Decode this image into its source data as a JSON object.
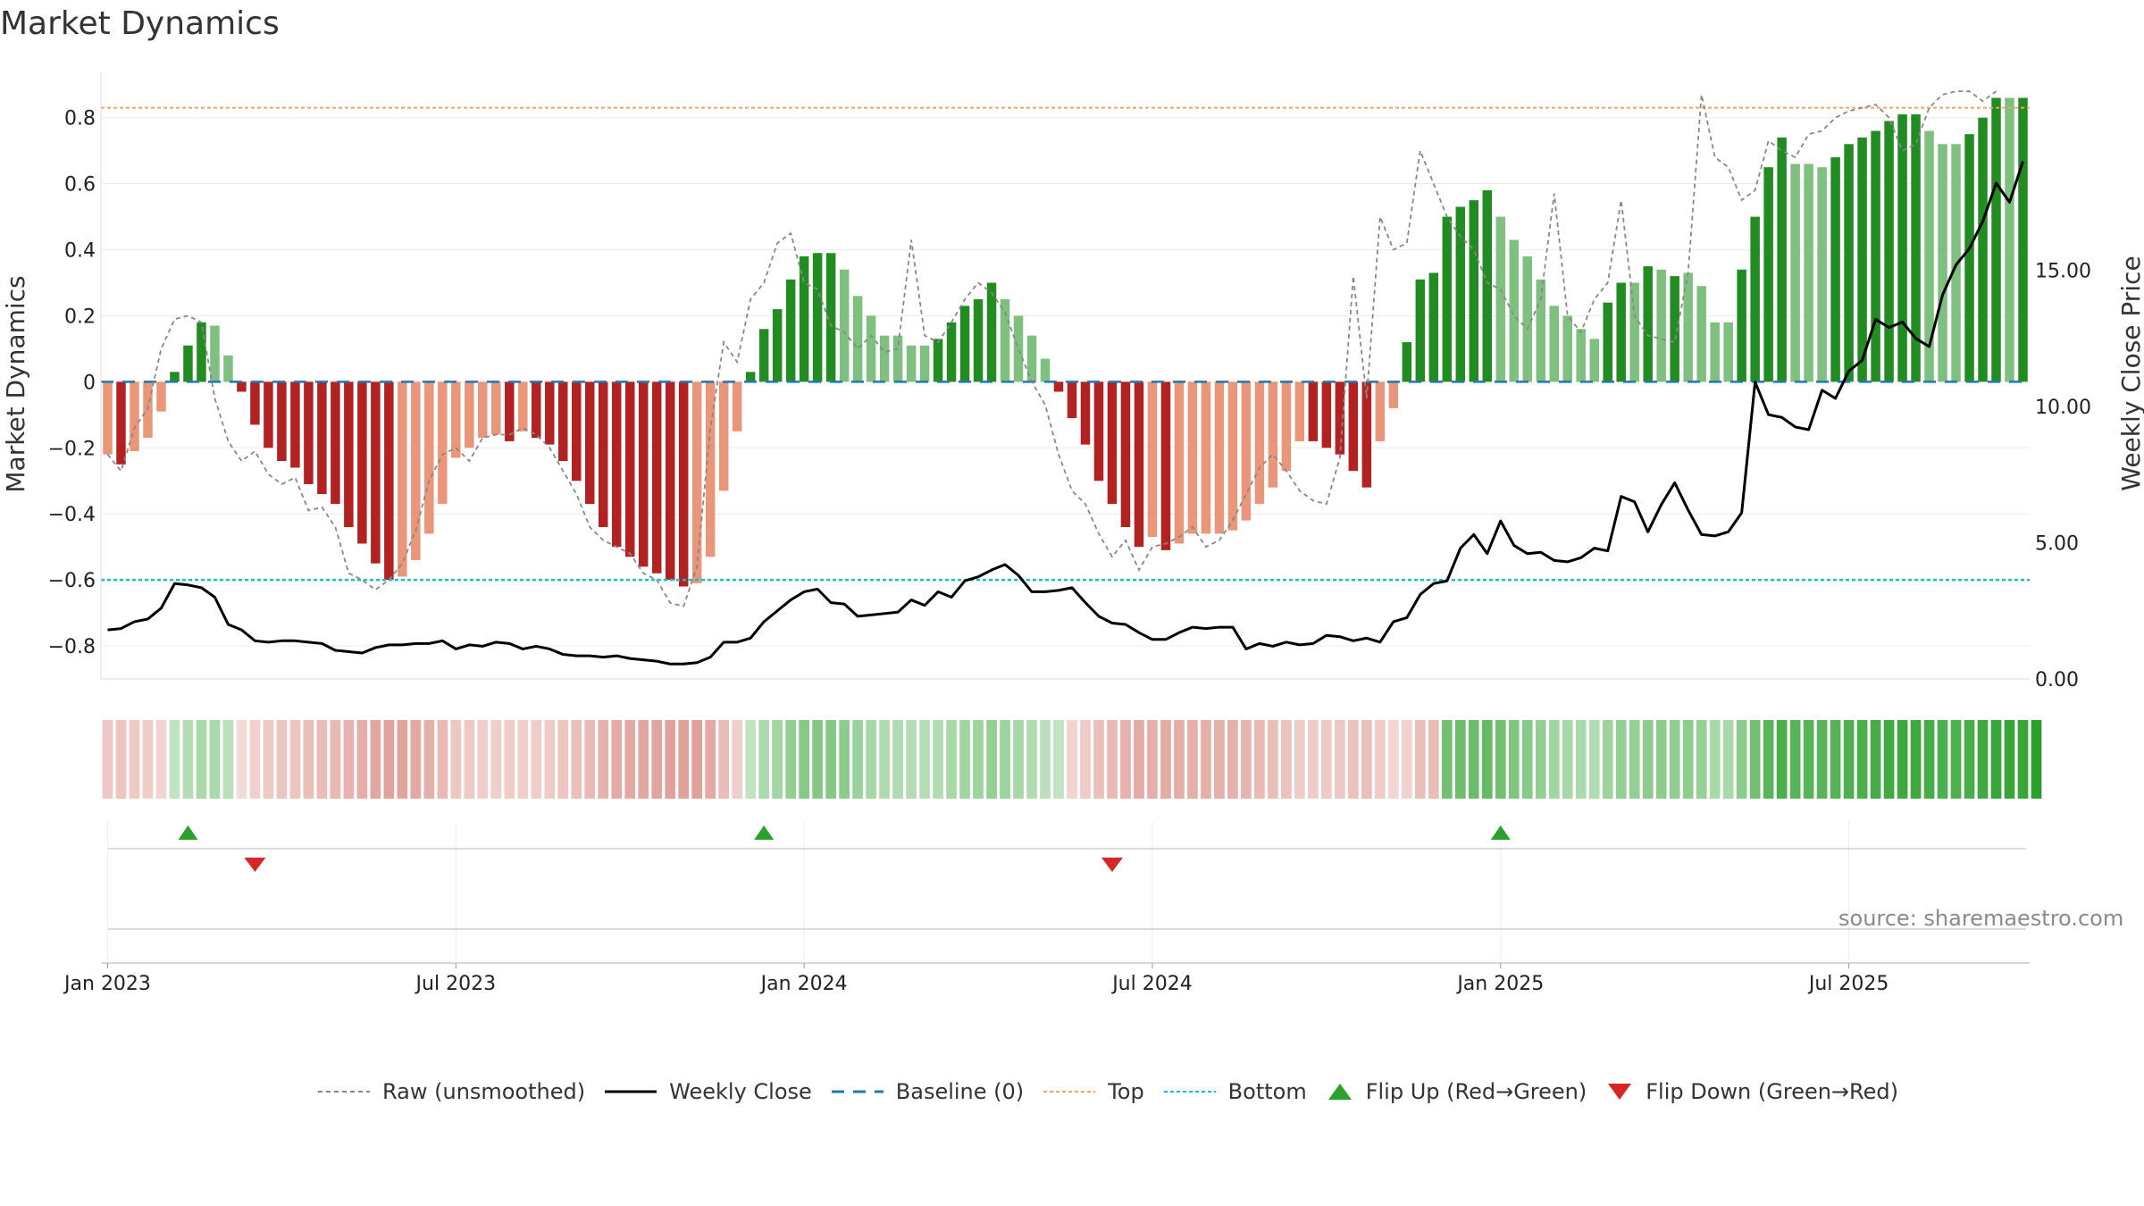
{
  "title": "Market Dynamics",
  "source": "source: sharemaestro.com",
  "chart_data": {
    "type": "bar",
    "title": "Market Dynamics",
    "ylabel": "Market Dynamics",
    "ylabel_right": "Weekly Close Price",
    "ylim": [
      -0.9,
      0.94
    ],
    "ylim_right": [
      0,
      22.3
    ],
    "y_ticks": [
      -0.8,
      -0.6,
      -0.4,
      -0.2,
      0,
      0.2,
      0.4,
      0.6,
      0.8
    ],
    "y_tick_labels": [
      "−0.8",
      "−0.6",
      "−0.4",
      "−0.2",
      "0",
      "0.2",
      "0.4",
      "0.6",
      "0.8"
    ],
    "y_right_ticks": [
      0,
      5,
      10,
      15
    ],
    "y_right_tick_labels": [
      "0.00",
      "5.00",
      "10.00",
      "15.00"
    ],
    "x_ticks": [
      1,
      27,
      53,
      79,
      105,
      131
    ],
    "x_tick_labels": [
      "Jan 2023",
      "Jul 2023",
      "Jan 2024",
      "Jul 2024",
      "Jan 2025",
      "Jul 2025"
    ],
    "top_line": 0.83,
    "bottom_line": -0.6,
    "baseline": 0,
    "colors": {
      "green_strong": "#228b22",
      "green_weak": "#7fbf7f",
      "red_strong": "#b22222",
      "red_weak": "#e9967a",
      "raw": "#888888",
      "close": "#000000",
      "baseline": "#1f77b4",
      "top": "#f4a460",
      "bottom": "#17becf",
      "flip_up": "#2ca02c",
      "flip_down": "#d62728"
    },
    "series": [
      {
        "name": "Market Dynamics (smoothed)",
        "values": [
          -0.22,
          -0.25,
          -0.21,
          -0.17,
          -0.09,
          0.03,
          0.11,
          0.18,
          0.17,
          0.08,
          -0.03,
          -0.13,
          -0.2,
          -0.24,
          -0.26,
          -0.31,
          -0.34,
          -0.37,
          -0.44,
          -0.49,
          -0.55,
          -0.6,
          -0.59,
          -0.54,
          -0.46,
          -0.37,
          -0.23,
          -0.2,
          -0.17,
          -0.16,
          -0.18,
          -0.15,
          -0.17,
          -0.19,
          -0.24,
          -0.3,
          -0.37,
          -0.44,
          -0.5,
          -0.53,
          -0.56,
          -0.58,
          -0.6,
          -0.62,
          -0.61,
          -0.53,
          -0.33,
          -0.15,
          0.03,
          0.16,
          0.22,
          0.31,
          0.38,
          0.39,
          0.39,
          0.34,
          0.26,
          0.2,
          0.14,
          0.14,
          0.11,
          0.11,
          0.13,
          0.18,
          0.23,
          0.25,
          0.3,
          0.25,
          0.2,
          0.14,
          0.07,
          -0.03,
          -0.11,
          -0.19,
          -0.3,
          -0.37,
          -0.44,
          -0.5,
          -0.47,
          -0.51,
          -0.49,
          -0.46,
          -0.46,
          -0.46,
          -0.45,
          -0.42,
          -0.37,
          -0.32,
          -0.27,
          -0.18,
          -0.18,
          -0.2,
          -0.22,
          -0.27,
          -0.32,
          -0.18,
          -0.08,
          0.12,
          0.31,
          0.33,
          0.5,
          0.53,
          0.55,
          0.58,
          0.5,
          0.43,
          0.38,
          0.31,
          0.23,
          0.2,
          0.16,
          0.13,
          0.24,
          0.3,
          0.3,
          0.35,
          0.34,
          0.32,
          0.33,
          0.29,
          0.18,
          0.18,
          0.34,
          0.5,
          0.65,
          0.74,
          0.66,
          0.66,
          0.65,
          0.68,
          0.72,
          0.74,
          0.76,
          0.79,
          0.81,
          0.81,
          0.76,
          0.72,
          0.72,
          0.75,
          0.8,
          0.86,
          0.86,
          0.86
        ]
      },
      {
        "name": "Strength",
        "values": [
          0,
          1,
          0,
          0,
          0,
          1,
          1,
          1,
          0,
          0,
          1,
          1,
          1,
          1,
          1,
          1,
          1,
          1,
          1,
          1,
          1,
          1,
          0,
          0,
          0,
          0,
          0,
          0,
          0,
          0,
          1,
          0,
          1,
          1,
          1,
          1,
          1,
          1,
          1,
          1,
          1,
          1,
          1,
          1,
          0,
          0,
          0,
          0,
          1,
          1,
          1,
          1,
          1,
          1,
          1,
          0,
          0,
          0,
          0,
          0,
          0,
          0,
          1,
          1,
          1,
          1,
          1,
          0,
          0,
          0,
          0,
          1,
          1,
          1,
          1,
          1,
          1,
          1,
          0,
          1,
          0,
          0,
          0,
          0,
          0,
          0,
          0,
          0,
          0,
          0,
          1,
          1,
          1,
          1,
          1,
          0,
          0,
          1,
          1,
          1,
          1,
          1,
          1,
          1,
          0,
          0,
          0,
          0,
          0,
          0,
          0,
          0,
          1,
          1,
          0,
          1,
          0,
          1,
          0,
          0,
          0,
          0,
          1,
          1,
          1,
          1,
          0,
          0,
          0,
          1,
          1,
          1,
          1,
          1,
          1,
          1,
          0,
          0,
          0,
          1,
          1,
          1,
          0,
          1
        ]
      },
      {
        "name": "Raw (unsmoothed)",
        "values": [
          -0.22,
          -0.27,
          -0.14,
          -0.08,
          0.1,
          0.19,
          0.2,
          0.18,
          -0.05,
          -0.18,
          -0.24,
          -0.21,
          -0.28,
          -0.31,
          -0.29,
          -0.39,
          -0.38,
          -0.44,
          -0.58,
          -0.6,
          -0.63,
          -0.6,
          -0.55,
          -0.45,
          -0.3,
          -0.22,
          -0.2,
          -0.24,
          -0.17,
          -0.16,
          -0.16,
          -0.14,
          -0.16,
          -0.2,
          -0.27,
          -0.34,
          -0.44,
          -0.48,
          -0.5,
          -0.52,
          -0.58,
          -0.6,
          -0.67,
          -0.68,
          -0.56,
          -0.14,
          0.12,
          0.06,
          0.25,
          0.3,
          0.42,
          0.45,
          0.3,
          0.28,
          0.17,
          0.15,
          0.1,
          0.14,
          0.09,
          0.1,
          0.43,
          0.14,
          0.12,
          0.18,
          0.25,
          0.3,
          0.27,
          0.21,
          0.1,
          0.0,
          -0.07,
          -0.22,
          -0.33,
          -0.37,
          -0.46,
          -0.53,
          -0.48,
          -0.57,
          -0.5,
          -0.49,
          -0.47,
          -0.44,
          -0.5,
          -0.48,
          -0.42,
          -0.34,
          -0.26,
          -0.22,
          -0.27,
          -0.33,
          -0.36,
          -0.37,
          -0.23,
          0.32,
          -0.05,
          0.5,
          0.4,
          0.42,
          0.7,
          0.6,
          0.5,
          0.44,
          0.4,
          0.3,
          0.28,
          0.2,
          0.16,
          0.25,
          0.57,
          0.2,
          0.15,
          0.25,
          0.3,
          0.55,
          0.2,
          0.14,
          0.13,
          0.12,
          0.33,
          0.87,
          0.68,
          0.65,
          0.55,
          0.58,
          0.73,
          0.7,
          0.68,
          0.75,
          0.76,
          0.8,
          0.82,
          0.83,
          0.84,
          0.8,
          0.7,
          0.72,
          0.83,
          0.87,
          0.88,
          0.88,
          0.85,
          0.88
        ]
      },
      {
        "name": "Weekly Close",
        "values": [
          1.8,
          1.85,
          2.1,
          2.2,
          2.6,
          3.5,
          3.45,
          3.35,
          3.0,
          2.0,
          1.8,
          1.4,
          1.35,
          1.4,
          1.4,
          1.35,
          1.3,
          1.05,
          1.0,
          0.95,
          1.15,
          1.25,
          1.25,
          1.3,
          1.3,
          1.4,
          1.1,
          1.25,
          1.2,
          1.35,
          1.3,
          1.1,
          1.2,
          1.1,
          0.9,
          0.85,
          0.85,
          0.8,
          0.85,
          0.75,
          0.7,
          0.65,
          0.55,
          0.55,
          0.6,
          0.8,
          1.35,
          1.35,
          1.5,
          2.1,
          2.5,
          2.9,
          3.2,
          3.3,
          2.8,
          2.75,
          2.3,
          2.35,
          2.4,
          2.45,
          2.9,
          2.7,
          3.2,
          3.0,
          3.6,
          3.75,
          4.0,
          4.2,
          3.8,
          3.2,
          3.2,
          3.25,
          3.35,
          2.8,
          2.3,
          2.05,
          2.0,
          1.7,
          1.45,
          1.45,
          1.7,
          1.9,
          1.85,
          1.9,
          1.9,
          1.1,
          1.3,
          1.2,
          1.35,
          1.25,
          1.3,
          1.6,
          1.55,
          1.4,
          1.5,
          1.35,
          2.1,
          2.25,
          3.1,
          3.5,
          3.6,
          4.8,
          5.3,
          4.6,
          5.8,
          4.9,
          4.6,
          4.65,
          4.35,
          4.3,
          4.45,
          4.8,
          4.7,
          6.7,
          6.5,
          5.4,
          6.4,
          7.2,
          6.2,
          5.3,
          5.25,
          5.4,
          6.1,
          10.9,
          9.7,
          9.6,
          9.25,
          9.15,
          10.6,
          10.3,
          11.3,
          11.7,
          13.2,
          12.9,
          13.1,
          12.5,
          12.2,
          14.1,
          15.2,
          15.8,
          16.8,
          18.2,
          17.5,
          19.0
        ]
      }
    ],
    "flip_up_weeks": [
      6,
      49,
      104
    ],
    "flip_down_weeks": [
      11,
      75
    ],
    "regime_strip": [
      "red",
      "red",
      "red",
      "red",
      "red",
      "green",
      "green",
      "green",
      "green",
      "green",
      "red",
      "red",
      "red",
      "red",
      "red",
      "red",
      "red",
      "red",
      "red",
      "red",
      "red",
      "red",
      "red",
      "red",
      "red",
      "red",
      "red",
      "red",
      "red",
      "red",
      "red",
      "red",
      "red",
      "red",
      "red",
      "red",
      "red",
      "red",
      "red",
      "red",
      "red",
      "red",
      "red",
      "red",
      "red",
      "red",
      "red",
      "red",
      "green",
      "green",
      "green",
      "green",
      "green",
      "green",
      "green",
      "green",
      "green",
      "green",
      "green",
      "green",
      "green",
      "green",
      "green",
      "green",
      "green",
      "green",
      "green",
      "green",
      "green",
      "green",
      "green",
      "green",
      "red",
      "red",
      "red",
      "red",
      "red",
      "red",
      "red",
      "red",
      "red",
      "red",
      "red",
      "red",
      "red",
      "red",
      "red",
      "red",
      "red",
      "red",
      "red",
      "red",
      "red",
      "red",
      "red",
      "red",
      "red",
      "red",
      "red",
      "red",
      "green",
      "green",
      "green",
      "green",
      "green",
      "green",
      "green",
      "green",
      "green",
      "green",
      "green",
      "green",
      "green",
      "green",
      "green",
      "green",
      "green",
      "green",
      "green",
      "green",
      "green",
      "green",
      "green",
      "green",
      "green",
      "green",
      "green",
      "green",
      "green",
      "green",
      "green",
      "green",
      "green",
      "green",
      "green",
      "green",
      "green",
      "green",
      "green",
      "green",
      "green",
      "green",
      "green",
      "green",
      "green"
    ],
    "legend": [
      "Raw (unsmoothed)",
      "Weekly Close",
      "Baseline (0)",
      "Top",
      "Bottom",
      "Flip Up (Red→Green)",
      "Flip Down (Green→Red)"
    ]
  }
}
